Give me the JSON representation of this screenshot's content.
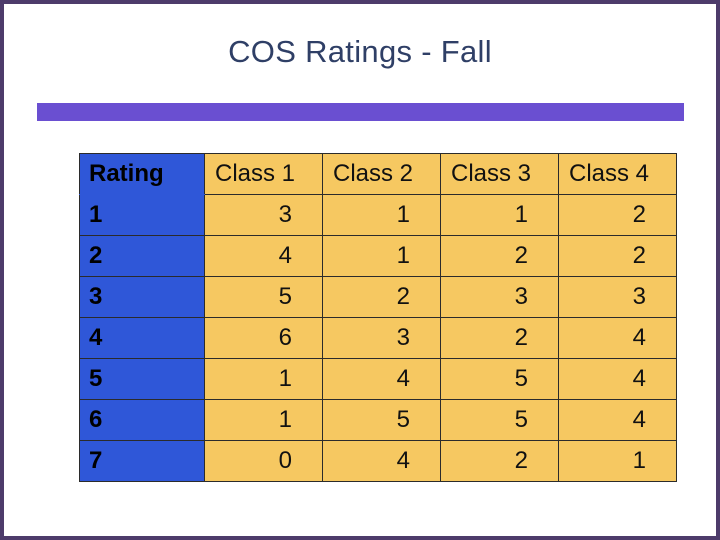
{
  "slide": {
    "title": "COS Ratings - Fall"
  },
  "table": {
    "headers": [
      "Rating",
      "Class 1",
      "Class 2",
      "Class 3",
      "Class 4"
    ],
    "rows": [
      {
        "rating": "1",
        "values": [
          "3",
          "1",
          "1",
          "2"
        ]
      },
      {
        "rating": "2",
        "values": [
          "4",
          "1",
          "2",
          "2"
        ]
      },
      {
        "rating": "3",
        "values": [
          "5",
          "2",
          "3",
          "3"
        ]
      },
      {
        "rating": "4",
        "values": [
          "6",
          "3",
          "2",
          "4"
        ]
      },
      {
        "rating": "5",
        "values": [
          "1",
          "4",
          "5",
          "4"
        ]
      },
      {
        "rating": "6",
        "values": [
          "1",
          "5",
          "5",
          "4"
        ]
      },
      {
        "rating": "7",
        "values": [
          "0",
          "4",
          "2",
          "1"
        ]
      }
    ]
  },
  "colors": {
    "border": "#4d3b6b",
    "title": "#2f3f66",
    "accent_bar": "#6a4fd1",
    "label_column": "#2f57d8",
    "data_cells": "#f6c861"
  }
}
